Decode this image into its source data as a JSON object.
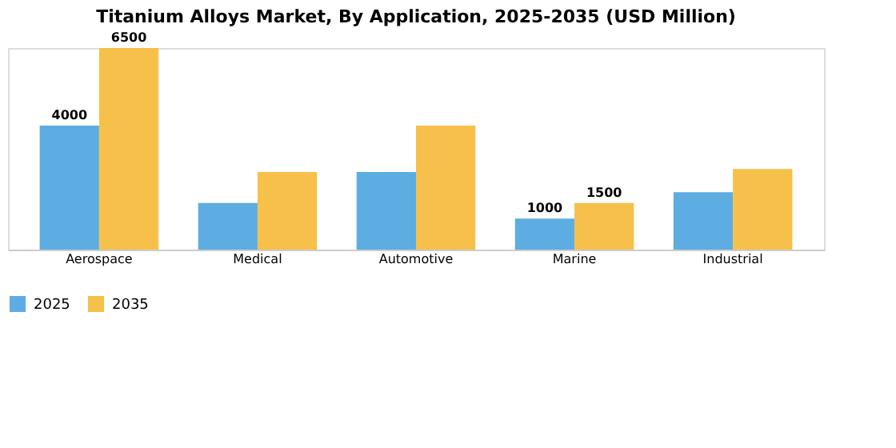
{
  "chart_data": {
    "type": "bar",
    "title": "Titanium Alloys Market, By Application, 2025-2035 (USD Million)",
    "categories": [
      "Aerospace",
      "Medical",
      "Automotive",
      "Marine",
      "Industrial"
    ],
    "series": [
      {
        "name": "2025",
        "color": "#5dade2",
        "values": [
          4000,
          1500,
          2500,
          1000,
          1850
        ],
        "value_labels": [
          "4000",
          null,
          null,
          "1000",
          null
        ]
      },
      {
        "name": "2035",
        "color": "#f7c04a",
        "values": [
          6500,
          2500,
          4000,
          1500,
          2600
        ],
        "value_labels": [
          "6500",
          null,
          null,
          "1500",
          null
        ]
      }
    ],
    "legend": "bottom",
    "grid": false,
    "tick_labels": "x"
  }
}
